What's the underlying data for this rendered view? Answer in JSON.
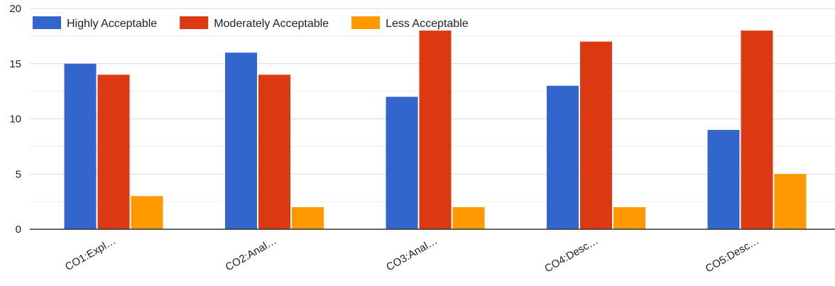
{
  "chart_data": {
    "type": "bar",
    "categories": [
      "CO1:Expl…",
      "CO2:Anal…",
      "CO3:Anal…",
      "CO4:Desc…",
      "CO5:Desc…"
    ],
    "series": [
      {
        "name": "Highly Acceptable",
        "color": "#3366cc",
        "values": [
          15,
          16,
          12,
          13,
          9
        ]
      },
      {
        "name": "Moderately Acceptable",
        "color": "#dc3912",
        "values": [
          14,
          14,
          18,
          17,
          18
        ]
      },
      {
        "name": "Less Acceptable",
        "color": "#ff9900",
        "values": [
          3,
          2,
          2,
          2,
          5
        ]
      }
    ],
    "yticks": [
      "0",
      "5",
      "10",
      "15",
      "20"
    ],
    "ylim": [
      0,
      20
    ],
    "grid": true,
    "legend": "top-left",
    "title": "",
    "xlabel": "",
    "ylabel": ""
  }
}
